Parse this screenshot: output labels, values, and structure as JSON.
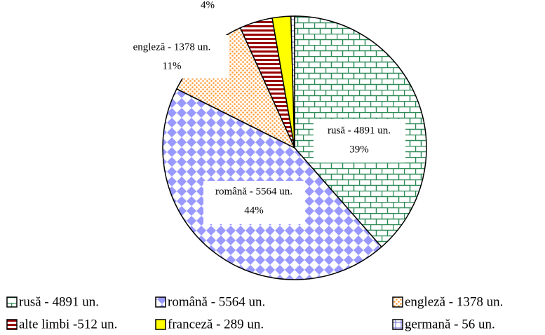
{
  "chart_data": {
    "type": "pie",
    "categories": [
      "rusă - 4891 un.",
      "română - 5564 un.",
      "engleză - 1378 un.",
      "alte limbi -512 un.",
      "franceză - 289 un.",
      "germană - 56 un."
    ],
    "values": [
      4891,
      5564,
      1378,
      512,
      289,
      56
    ],
    "colors": [
      "#2e8b57",
      "#9999ff",
      "#ff9933",
      "#990000",
      "#ffff00",
      "#6666cc"
    ],
    "slice_labels": [
      {
        "name": "rusă - 4891 un.",
        "percent": "39%"
      },
      {
        "name": "română - 5564 un.",
        "percent": "44%"
      },
      {
        "name": "engleză - 1378 un.",
        "percent": "11%"
      },
      {
        "percent": "4%"
      }
    ],
    "legend": "bottom"
  }
}
